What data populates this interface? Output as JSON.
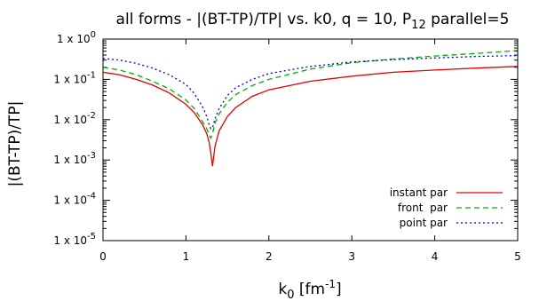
{
  "chart_data": {
    "type": "line",
    "title": {
      "main": "all forms - |(BT-TP)/TP| vs. k0, q = 10, P",
      "sub": "12",
      "tail": " parallel=5"
    },
    "xlabel": {
      "main": "k",
      "sub": "0",
      "unit_pre": " [fm",
      "sup": "-1",
      "unit_post": "]"
    },
    "ylabel": "|(BT-TP)/TP|",
    "xlim": [
      0,
      5
    ],
    "ylim": [
      1e-05,
      1
    ],
    "yscale": "log",
    "grid": false,
    "legend_position": "bottom-right",
    "x_ticks": [
      {
        "value": 0,
        "label": "0"
      },
      {
        "value": 1,
        "label": "1"
      },
      {
        "value": 2,
        "label": "2"
      },
      {
        "value": 3,
        "label": "3"
      },
      {
        "value": 4,
        "label": "4"
      },
      {
        "value": 5,
        "label": "5"
      }
    ],
    "y_ticks": [
      {
        "value": 1,
        "mant": "1 x 10",
        "exp": "0"
      },
      {
        "value": 0.1,
        "mant": "1 x 10",
        "exp": "-1"
      },
      {
        "value": 0.01,
        "mant": "1 x 10",
        "exp": "-2"
      },
      {
        "value": 0.001,
        "mant": "1 x 10",
        "exp": "-3"
      },
      {
        "value": 0.0001,
        "mant": "1 x 10",
        "exp": "-4"
      },
      {
        "value": 1e-05,
        "mant": "1 x 10",
        "exp": "-5"
      }
    ],
    "series": [
      {
        "name": "instant par",
        "color": "#e00000",
        "dash": "",
        "x": [
          0,
          0.2,
          0.4,
          0.6,
          0.8,
          1.0,
          1.1,
          1.2,
          1.25,
          1.28,
          1.3,
          1.32,
          1.35,
          1.4,
          1.5,
          1.6,
          1.8,
          2.0,
          2.5,
          3.0,
          3.5,
          4.0,
          4.5,
          5.0
        ],
        "y": [
          0.15,
          0.13,
          0.1,
          0.072,
          0.046,
          0.024,
          0.015,
          0.0075,
          0.0045,
          0.0027,
          0.0015,
          0.0007,
          0.0022,
          0.0053,
          0.012,
          0.02,
          0.038,
          0.055,
          0.09,
          0.12,
          0.15,
          0.17,
          0.19,
          0.21
        ]
      },
      {
        "name": "front  par",
        "color": "#00b000",
        "dash": "6,4",
        "x": [
          0,
          0.2,
          0.4,
          0.6,
          0.8,
          1.0,
          1.1,
          1.2,
          1.25,
          1.28,
          1.3,
          1.32,
          1.35,
          1.4,
          1.5,
          1.6,
          1.8,
          2.0,
          2.5,
          3.0,
          3.5,
          4.0,
          4.5,
          5.0
        ],
        "y": [
          0.2,
          0.17,
          0.13,
          0.09,
          0.058,
          0.031,
          0.019,
          0.009,
          0.006,
          0.0042,
          0.0035,
          0.0045,
          0.0082,
          0.014,
          0.027,
          0.042,
          0.07,
          0.1,
          0.18,
          0.26,
          0.32,
          0.38,
          0.44,
          0.52
        ]
      },
      {
        "name": "point par",
        "color": "#0000cc",
        "dash": "2,3",
        "x": [
          0,
          0.2,
          0.4,
          0.6,
          0.8,
          1.0,
          1.1,
          1.2,
          1.25,
          1.28,
          1.3,
          1.32,
          1.35,
          1.4,
          1.5,
          1.6,
          1.8,
          2.0,
          2.5,
          3.0,
          3.5,
          4.0,
          4.5,
          5.0
        ],
        "y": [
          0.33,
          0.3,
          0.25,
          0.19,
          0.13,
          0.075,
          0.045,
          0.021,
          0.012,
          0.0075,
          0.006,
          0.0063,
          0.0105,
          0.019,
          0.04,
          0.062,
          0.1,
          0.14,
          0.21,
          0.27,
          0.31,
          0.34,
          0.37,
          0.39
        ]
      }
    ]
  }
}
